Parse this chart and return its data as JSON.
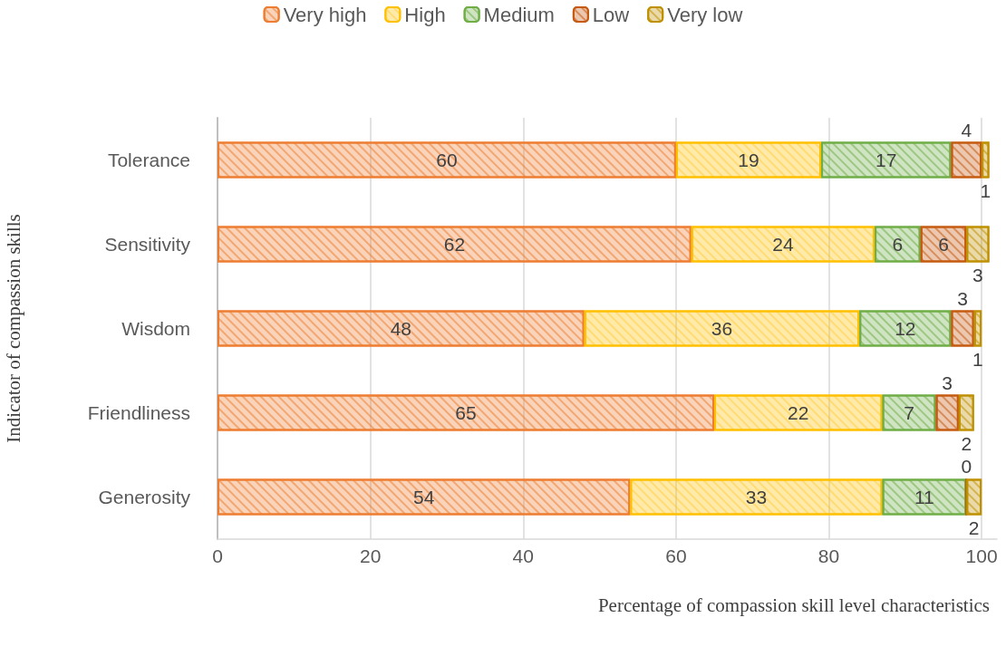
{
  "chart_data": {
    "type": "bar",
    "orientation": "horizontal",
    "stacked": true,
    "xlabel": "Percentage of compassion skill level characteristics",
    "ylabel": "Indicator of compassion skills",
    "categories": [
      "Tolerance",
      "Sensitivity",
      "Wisdom",
      "Friendliness",
      "Generosity"
    ],
    "series": [
      {
        "name": "Very high",
        "color": "#ed7d31",
        "values": [
          60,
          62,
          48,
          65,
          54
        ]
      },
      {
        "name": "High",
        "color": "#ffc000",
        "values": [
          19,
          24,
          36,
          22,
          33
        ]
      },
      {
        "name": "Medium",
        "color": "#70ad47",
        "values": [
          17,
          6,
          12,
          7,
          11
        ]
      },
      {
        "name": "Low",
        "color": "#c55a11",
        "values": [
          4,
          6,
          3,
          3,
          0
        ]
      },
      {
        "name": "Very low",
        "color": "#bf9000",
        "values": [
          1,
          3,
          1,
          2,
          2
        ]
      }
    ],
    "xlim": [
      0,
      102
    ],
    "xticks": [
      0,
      20,
      40,
      60,
      80,
      100
    ],
    "grid": "x",
    "legend": "top",
    "data_labels": true
  }
}
